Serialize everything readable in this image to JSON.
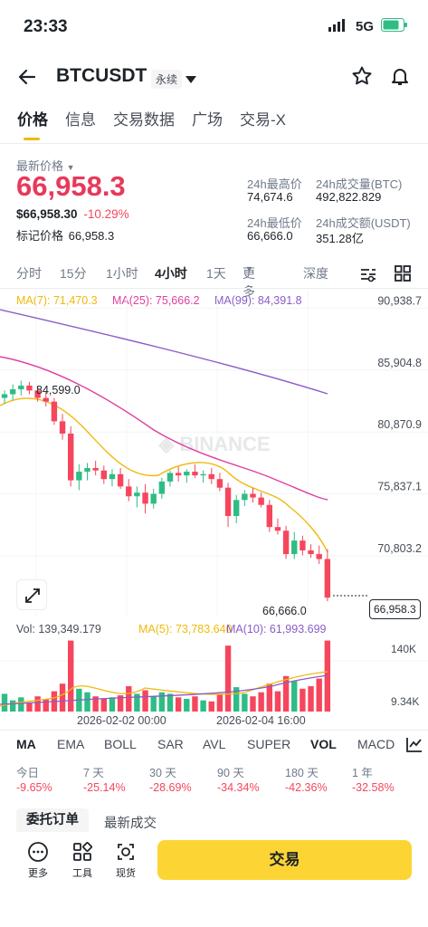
{
  "status": {
    "time": "23:33",
    "network": "5G"
  },
  "header": {
    "symbol": "BTCUSDT",
    "contract": "永续"
  },
  "tabs": [
    "价格",
    "信息",
    "交易数据",
    "广场",
    "交易-X"
  ],
  "price": {
    "latest_label": "最新价格",
    "last": "66,958.3",
    "usd": "$66,958.30",
    "change": "-10.29%",
    "mark_label": "标记价格",
    "mark": "66,958.3"
  },
  "stats": {
    "high_label": "24h最高价",
    "high": "74,674.6",
    "vol_btc_label": "24h成交量(BTC)",
    "vol_btc": "492,822.829",
    "low_label": "24h最低价",
    "low": "66,666.0",
    "vol_usdt_label": "24h成交额(USDT)",
    "vol_usdt": "351.28亿"
  },
  "timeframes": [
    "分时",
    "15分",
    "1小时",
    "4小时",
    "1天",
    "更多",
    "深度"
  ],
  "active_timeframe": "4小时",
  "ma_legend": {
    "ma7": "MA(7): 71,470.3",
    "ma25": "MA(25): 75,666.2",
    "ma99": "MA(99): 84,391.8"
  },
  "price_axis": [
    "90,938.7",
    "85,904.8",
    "80,870.9",
    "75,837.1",
    "70,803.2"
  ],
  "annotations": {
    "high": "84,599.0",
    "low": "66,666.0",
    "current": "66,958.3",
    "watermark": "BINANCE"
  },
  "vol_legend": {
    "vol": "Vol: 139,349.179",
    "ma5": "MA(5): 73,783.640",
    "ma10": "MA(10): 61,993.699"
  },
  "vol_axis": [
    "140K",
    "9.34K"
  ],
  "time_axis": [
    "2026-02-02 00:00",
    "2026-02-04 16:00"
  ],
  "indicators": [
    "MA",
    "EMA",
    "BOLL",
    "SAR",
    "AVL",
    "SUPER",
    "VOL",
    "MACD"
  ],
  "performance": [
    {
      "label": "今日",
      "value": "-9.65%"
    },
    {
      "label": "7 天",
      "value": "-25.14%"
    },
    {
      "label": "30 天",
      "value": "-28.69%"
    },
    {
      "label": "90 天",
      "value": "-34.34%"
    },
    {
      "label": "180 天",
      "value": "-42.36%"
    },
    {
      "label": "1 年",
      "value": "-32.58%"
    }
  ],
  "order_tabs": [
    "委托订单",
    "最新成交"
  ],
  "bottom": {
    "more": "更多",
    "tools": "工具",
    "spot": "现货",
    "trade": "交易"
  },
  "colors": {
    "up": "#2ebd85",
    "down": "#f6465d",
    "accent": "#fcd535",
    "ma7": "#f0b90b",
    "ma25": "#e040a0",
    "ma99": "#8b5cc8"
  },
  "chart_data": {
    "type": "candlestick",
    "ylim": [
      65500,
      92000
    ],
    "candles": [
      [
        83200,
        83800,
        82700,
        83500
      ],
      [
        83500,
        84300,
        83000,
        83900
      ],
      [
        83900,
        84599,
        83400,
        84200
      ],
      [
        84200,
        84500,
        83500,
        83800
      ],
      [
        83800,
        84200,
        82900,
        83200
      ],
      [
        83200,
        83700,
        82500,
        82900
      ],
      [
        82900,
        83200,
        81000,
        81300
      ],
      [
        81300,
        81900,
        79800,
        80300
      ],
      [
        80300,
        80900,
        76000,
        76500
      ],
      [
        76500,
        77800,
        75700,
        77200
      ],
      [
        77200,
        77900,
        76500,
        77500
      ],
      [
        77500,
        78100,
        76900,
        77300
      ],
      [
        77300,
        77700,
        76200,
        76600
      ],
      [
        76600,
        77400,
        76000,
        77000
      ],
      [
        77000,
        77500,
        75800,
        76000
      ],
      [
        76000,
        76600,
        74800,
        75200
      ],
      [
        75200,
        76000,
        74300,
        75500
      ],
      [
        75500,
        76200,
        73800,
        74600
      ],
      [
        74600,
        75800,
        74200,
        75400
      ],
      [
        75400,
        76700,
        75000,
        76400
      ],
      [
        76400,
        77300,
        76000,
        77100
      ],
      [
        77100,
        77600,
        76400,
        76900
      ],
      [
        76900,
        77400,
        76300,
        77200
      ],
      [
        77200,
        77800,
        76700,
        76900
      ],
      [
        76900,
        77300,
        76300,
        77000
      ],
      [
        77000,
        77500,
        76200,
        76600
      ],
      [
        76600,
        77100,
        75600,
        75900
      ],
      [
        75900,
        76300,
        72700,
        73600
      ],
      [
        73600,
        75300,
        73000,
        74900
      ],
      [
        74900,
        75700,
        74400,
        75400
      ],
      [
        75400,
        75900,
        74700,
        75100
      ],
      [
        75100,
        75500,
        74300,
        74500
      ],
      [
        74500,
        74900,
        72300,
        72700
      ],
      [
        72700,
        73400,
        72100,
        72400
      ],
      [
        72400,
        72800,
        70100,
        70500
      ],
      [
        70500,
        72300,
        70100,
        71600
      ],
      [
        71600,
        72000,
        70400,
        70800
      ],
      [
        70800,
        71300,
        70200,
        70500
      ],
      [
        70500,
        71200,
        69700,
        70100
      ],
      [
        70100,
        70900,
        66666,
        66958.3
      ]
    ],
    "volume": [
      35,
      22,
      28,
      18,
      30,
      25,
      40,
      55,
      140,
      45,
      38,
      30,
      25,
      28,
      32,
      50,
      35,
      42,
      30,
      38,
      35,
      28,
      25,
      30,
      22,
      20,
      35,
      130,
      48,
      35,
      30,
      38,
      55,
      40,
      70,
      60,
      45,
      50,
      65,
      140
    ],
    "vol_ylim": [
      0,
      150
    ]
  }
}
